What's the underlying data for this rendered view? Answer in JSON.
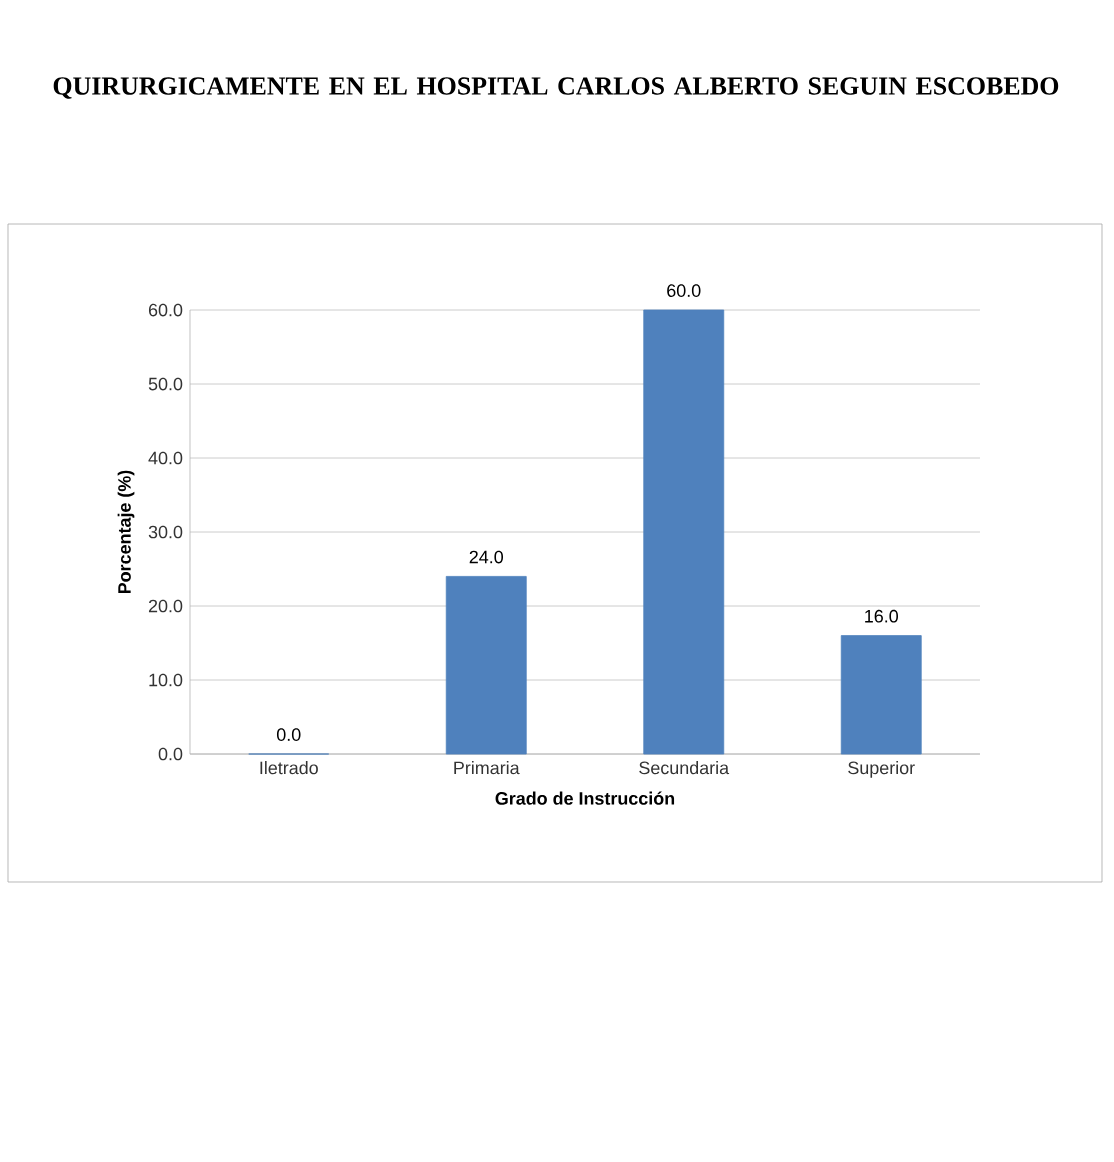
{
  "chart_data": {
    "type": "bar",
    "title": "QUIRURGICAMENTE EN EL HOSPITAL CARLOS ALBERTO SEGUIN ESCOBEDO",
    "categories": [
      "Iletrado",
      "Primaria",
      "Secundaria",
      "Superior"
    ],
    "values": [
      0,
      24,
      60,
      16
    ],
    "value_labels": [
      "0.0",
      "24.0",
      "60.0",
      "16.0"
    ],
    "color": "#4f81bd",
    "xlabel": "Grado de Instrucción",
    "ylabel": "Porcentaje (%)",
    "ylim": [
      0,
      60
    ],
    "yticks": [
      {
        "value": 0,
        "label": "0.0"
      },
      {
        "value": 10,
        "label": "10.0"
      },
      {
        "value": 20,
        "label": "20.0"
      },
      {
        "value": 30,
        "label": "30.0"
      },
      {
        "value": 40,
        "label": "40.0"
      },
      {
        "value": 50,
        "label": "50.0"
      },
      {
        "value": 60,
        "label": "60.0"
      }
    ],
    "grid": "y"
  }
}
